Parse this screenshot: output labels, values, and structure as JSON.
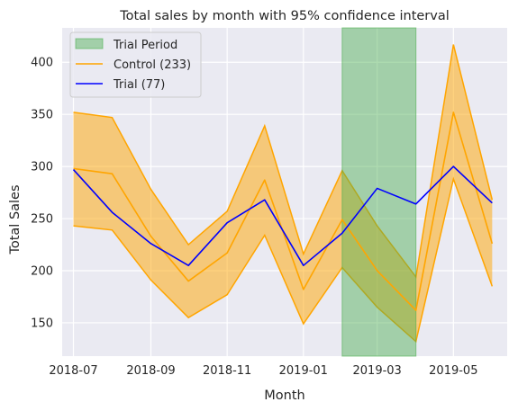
{
  "chart_data": {
    "type": "line",
    "title": "Total sales by month with 95% confidence interval",
    "xlabel": "Month",
    "ylabel": "Total Sales",
    "x": [
      "2018-07-01",
      "2018-08-01",
      "2018-09-01",
      "2018-10-01",
      "2018-11-01",
      "2018-12-01",
      "2019-01-01",
      "2019-02-01",
      "2019-03-01",
      "2019-04-01",
      "2019-05-01",
      "2019-06-01"
    ],
    "x_ticks": [
      "2018-07",
      "2018-09",
      "2018-11",
      "2019-01",
      "2019-03",
      "2019-05"
    ],
    "y_ticks": [
      150,
      200,
      250,
      300,
      350,
      400
    ],
    "ylim": [
      118,
      433
    ],
    "xlim": [
      "2018-06-22",
      "2019-06-13"
    ],
    "grid": true,
    "legend_position": "top-left",
    "series": [
      {
        "name": "Control (233)",
        "color": "#ffa500",
        "values": [
          298,
          293,
          233,
          190,
          217,
          287,
          182,
          249,
          200,
          162,
          352,
          226
        ],
        "ci_upper": [
          352,
          347,
          278,
          225,
          257,
          339,
          216,
          296,
          243,
          194,
          417,
          268
        ],
        "ci_lower": [
          243,
          239,
          191,
          155,
          177,
          234,
          149,
          203,
          165,
          132,
          288,
          185
        ]
      },
      {
        "name": "Trial (77)",
        "color": "#0000ff",
        "values": [
          297,
          256,
          226,
          205,
          246,
          268,
          205,
          236,
          279,
          264,
          300,
          265
        ]
      }
    ],
    "highlight": {
      "label": "Trial Period",
      "from": "2019-02-01",
      "to": "2019-04-01",
      "color": "#4caf50"
    }
  }
}
